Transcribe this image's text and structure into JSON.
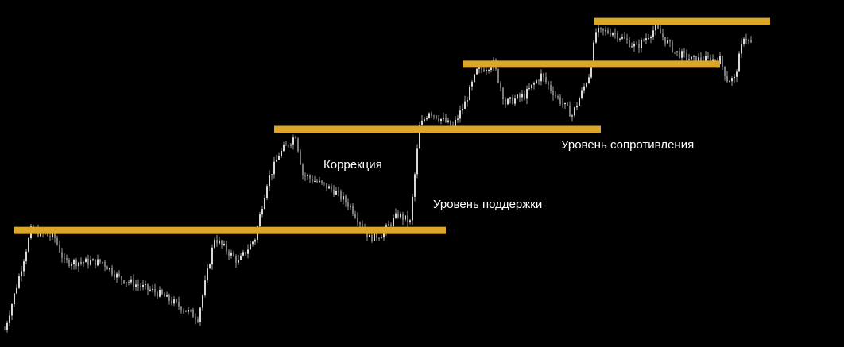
{
  "chart_data": {
    "type": "candlestick",
    "title": "",
    "xlabel": "",
    "ylabel": "",
    "xlim": [
      0,
      354
    ],
    "ylim": [
      0,
      100
    ],
    "grid": false,
    "background": "#000000",
    "candle_color": "#d8d8d8",
    "price_path": [
      [
        2,
        5.0
      ],
      [
        7,
        17.6
      ],
      [
        13,
        33.6
      ],
      [
        23,
        31.4
      ],
      [
        27,
        24.5
      ],
      [
        43,
        24.5
      ],
      [
        50,
        19.9
      ],
      [
        67,
        15.3
      ],
      [
        83,
        8.4
      ],
      [
        90,
        31.4
      ],
      [
        100,
        24.5
      ],
      [
        107,
        31.4
      ],
      [
        112,
        47.4
      ],
      [
        117,
        55.4
      ],
      [
        124,
        61.1
      ],
      [
        127,
        49.7
      ],
      [
        140,
        45.1
      ],
      [
        147,
        40.5
      ],
      [
        155,
        31.4
      ],
      [
        160,
        32.5
      ],
      [
        167,
        38.2
      ],
      [
        172,
        35.9
      ],
      [
        173,
        42.8
      ],
      [
        176,
        63.4
      ],
      [
        180,
        68.0
      ],
      [
        190,
        63.4
      ],
      [
        195,
        70.3
      ],
      [
        200,
        79.4
      ],
      [
        207,
        81.7
      ],
      [
        212,
        70.3
      ],
      [
        220,
        72.5
      ],
      [
        227,
        78.3
      ],
      [
        233,
        72.5
      ],
      [
        240,
        66.8
      ],
      [
        247,
        78.3
      ],
      [
        250,
        90.8
      ],
      [
        257,
        90.8
      ],
      [
        267,
        86.3
      ],
      [
        275,
        92.0
      ],
      [
        283,
        85.1
      ],
      [
        290,
        82.8
      ],
      [
        302,
        82.8
      ],
      [
        305,
        77.1
      ],
      [
        308,
        77.1
      ],
      [
        312,
        89.7
      ],
      [
        315,
        87.4
      ]
    ],
    "levels": [
      {
        "kind": "support",
        "price": 33.6,
        "from_bar": 6,
        "to_bar": 187
      },
      {
        "kind": "resistance",
        "price": 62.7,
        "from_bar": 115,
        "to_bar": 252
      },
      {
        "kind": "resistance",
        "price": 81.5,
        "from_bar": 194,
        "to_bar": 302
      },
      {
        "kind": "resistance",
        "price": 93.8,
        "from_bar": 249,
        "to_bar": 323
      }
    ],
    "level_color": "#dca626",
    "annotations": {
      "correction": "Коррекция",
      "support": "Уровень поддержки",
      "resistance": "Уровень сопротивления"
    }
  }
}
